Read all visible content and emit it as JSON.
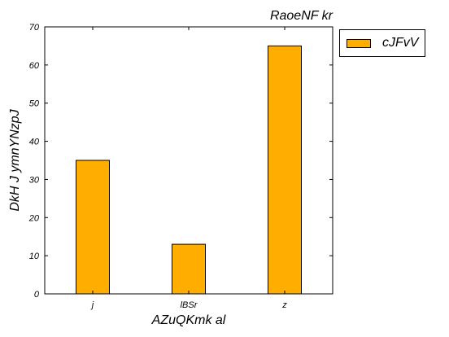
{
  "chart_data": {
    "type": "bar",
    "title": "RaoeNF kr",
    "xlabel": "AZuQKmk al",
    "ylabel": "DkH J ymnYNzpJ",
    "categories": [
      "j",
      "lBSr",
      "z"
    ],
    "series": [
      {
        "name": "cJFvV",
        "values": [
          35,
          13,
          65
        ],
        "color": "#ffae00"
      }
    ],
    "ylim": [
      0,
      70
    ],
    "yticks": [
      0,
      10,
      20,
      30,
      40,
      50,
      60,
      70
    ],
    "grid": false,
    "legend_position": "outside-right"
  }
}
